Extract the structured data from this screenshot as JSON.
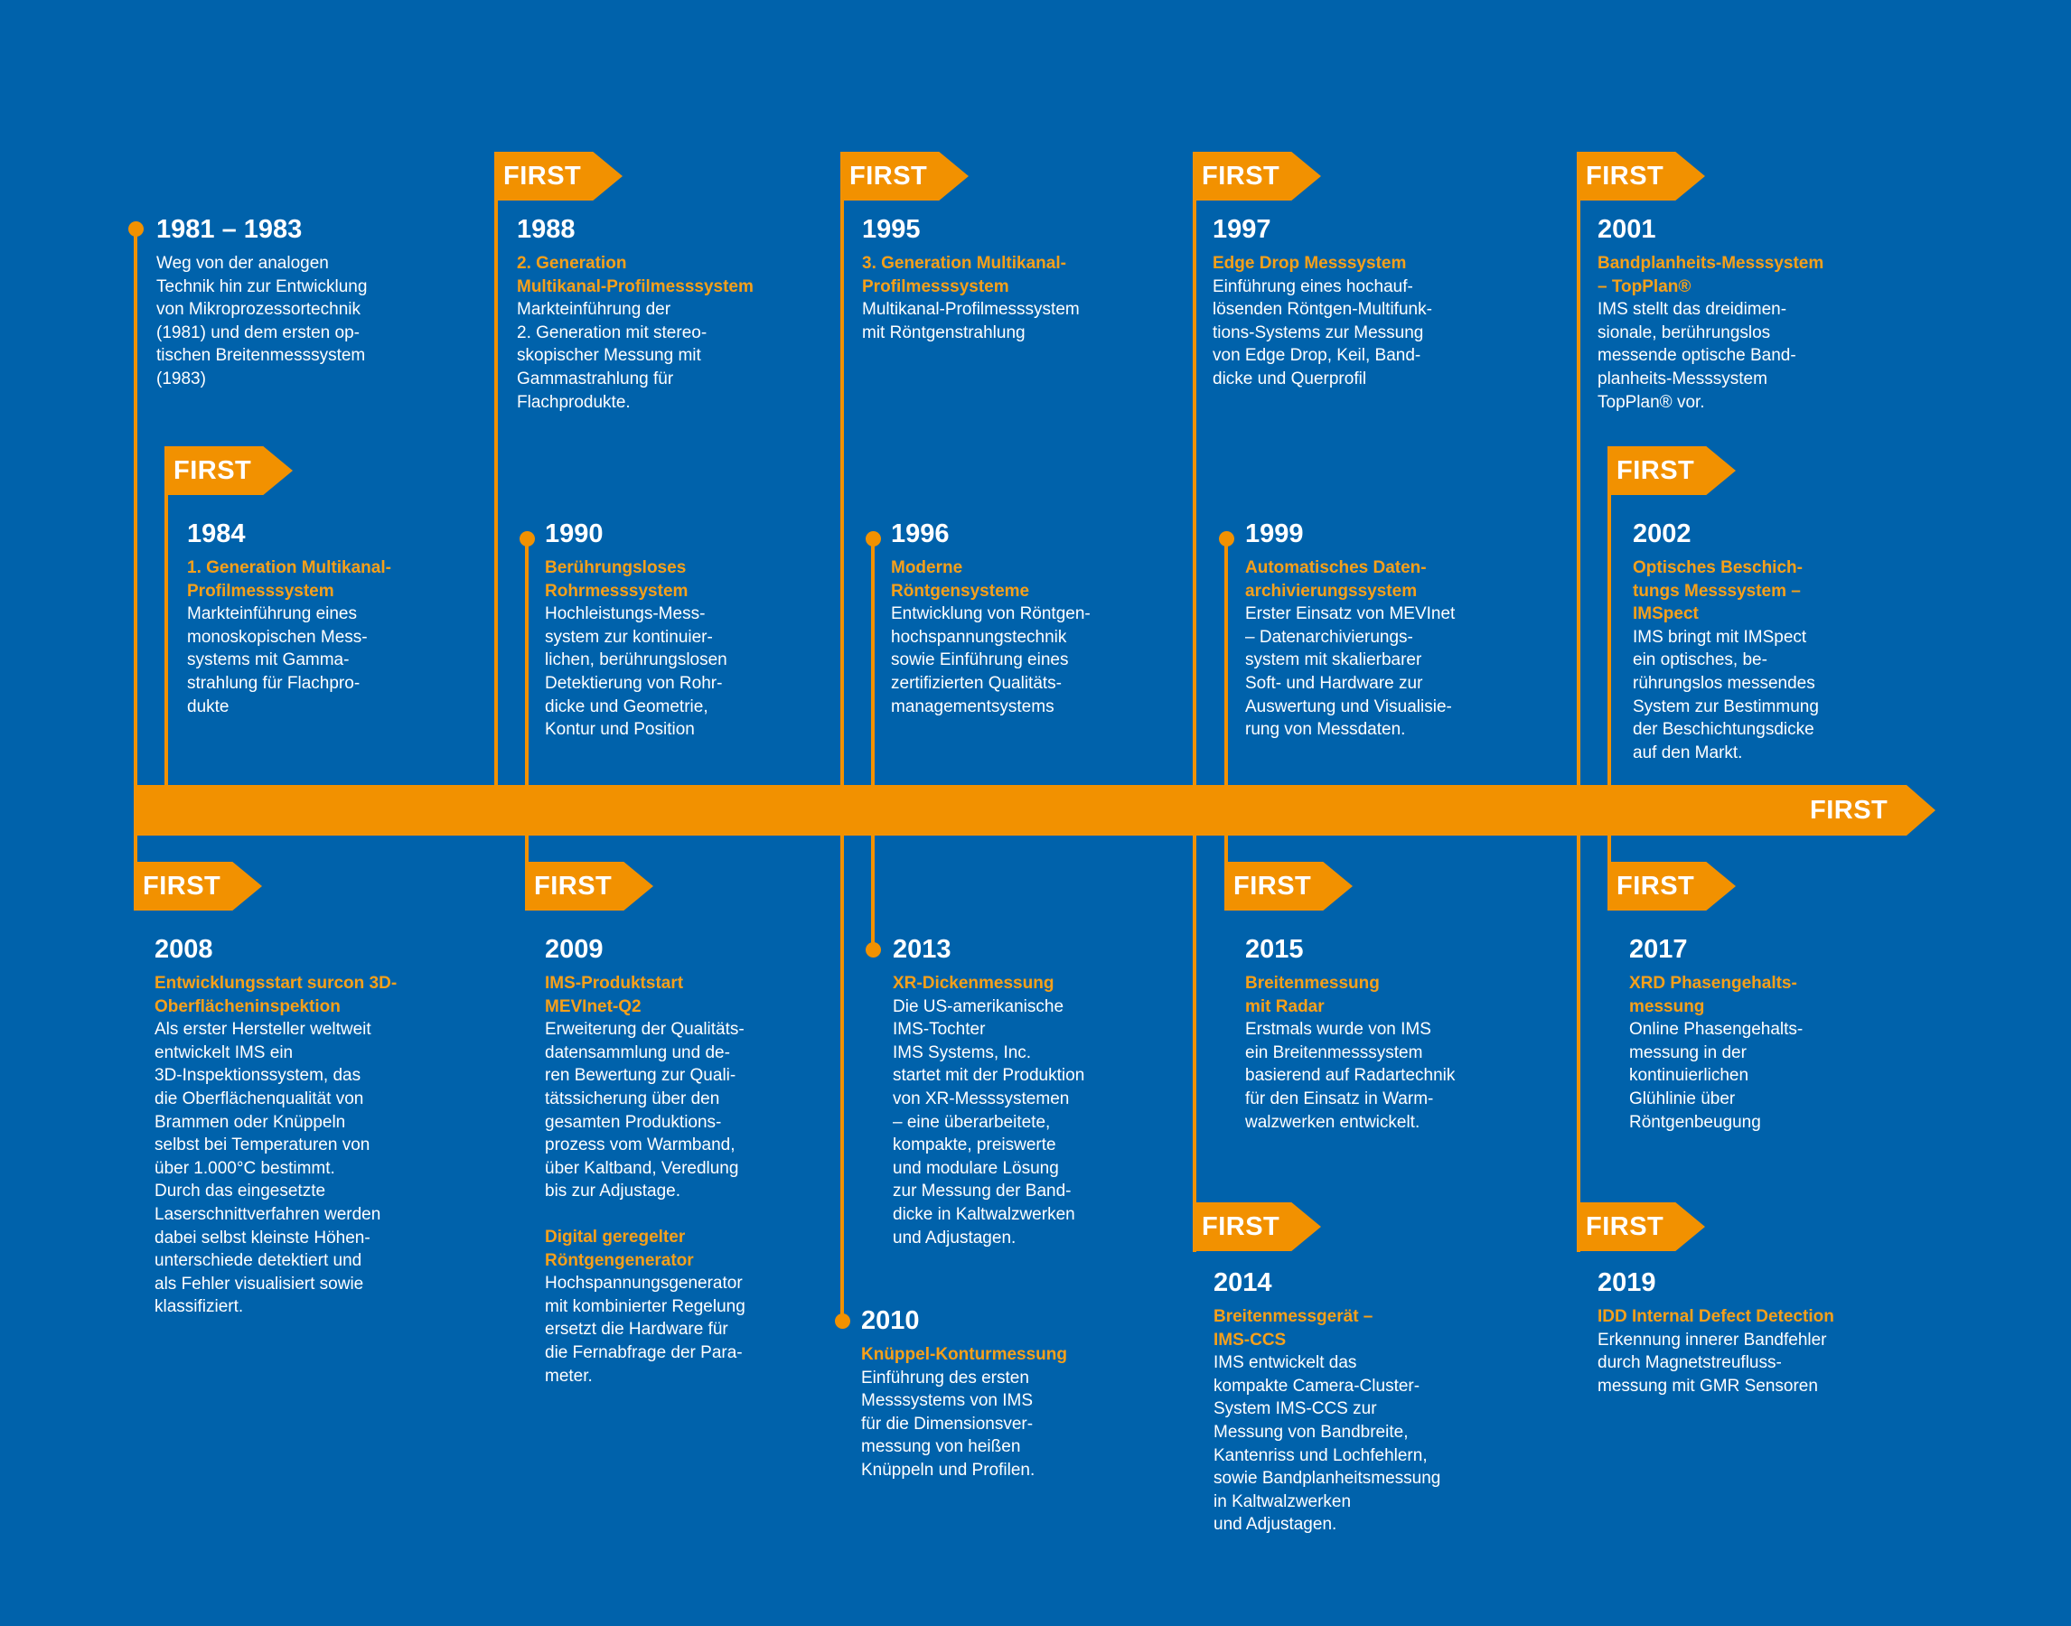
{
  "colors": {
    "background": "#0062ab",
    "accent": "#f29100",
    "title_text": "#f6a01a",
    "text": "#ffffff"
  },
  "flag_label": "FIRST",
  "main_arrow_label": "FIRST",
  "entries": {
    "e1981": {
      "year": "1981 – 1983",
      "body": "Weg von der analogen\nTechnik hin zur Entwicklung\nvon Mikroprozessortechnik\n(1981) und dem ersten op-\ntischen Breitenmesssystem\n(1983)"
    },
    "e1984": {
      "year": "1984",
      "title": "1. Generation Multikanal-\nProfilmesssystem",
      "body": "Markteinführung eines\nmonoskopischen Mess-\nsystems mit Gamma-\nstrahlung für Flachpro-\ndukte"
    },
    "e1988": {
      "year": "1988",
      "title": "2. Generation\nMultikanal-Profilmesssystem",
      "body": "Markteinführung der\n2. Generation mit stereo-\nskopischer Messung mit\nGammastrahlung für\nFlachprodukte."
    },
    "e1990": {
      "year": "1990",
      "title": "Berührungsloses\nRohrmesssystem",
      "body": "Hochleistungs-Mess-\nsystem zur kontinuier-\nlichen, berührungslosen\nDetektierung von Rohr-\ndicke und Geometrie,\nKontur und Position"
    },
    "e1995": {
      "year": "1995",
      "title": "3. Generation Multikanal-\nProfilmesssystem",
      "body": "Multikanal-Profilmesssystem\nmit Röntgenstrahlung"
    },
    "e1996": {
      "year": "1996",
      "title": "Moderne\nRöntgensysteme",
      "body": "Entwicklung von Röntgen-\nhochspannungstechnik\nsowie Einführung eines\nzertifizierten Qualitäts-\nmanagementsystems"
    },
    "e1997": {
      "year": "1997",
      "title": "Edge Drop Messsystem",
      "body": "Einführung eines hochauf-\nlösenden Röntgen-Multifunk-\ntions-Systems zur Messung\nvon Edge Drop, Keil, Band-\ndicke und Querprofil"
    },
    "e1999": {
      "year": "1999",
      "title": "Automatisches Daten-\narchivierungssystem",
      "body": "Erster Einsatz von MEVInet\n– Datenarchivierungs-\nsystem mit skalierbarer\nSoft- und Hardware zur\nAuswertung und Visualisie-\nrung von Messdaten."
    },
    "e2001": {
      "year": "2001",
      "title": "Bandplanheits-Messsystem\n– TopPlan®",
      "body": "IMS stellt das dreidimen-\nsionale, berührungslos\nmessende optische Band-\nplanheits-Messsystem\nTopPlan® vor."
    },
    "e2002": {
      "year": "2002",
      "title": "Optisches Beschich-\ntungs Messsystem –\nIMSpect",
      "body": "IMS bringt mit IMSpect\nein optisches, be-\nrührungslos messendes\nSystem zur Bestimmung\nder Beschichtungsdicke\nauf den Markt."
    },
    "e2008": {
      "year": "2008",
      "title": "Entwicklungsstart surcon 3D-\nOberflächeninspektion",
      "body": "Als erster Hersteller weltweit\nentwickelt IMS ein\n3D-Inspektionssystem, das\ndie Oberflächenqualität von\nBrammen oder Knüppeln\nselbst bei Temperaturen von\nüber 1.000°C bestimmt.\nDurch das eingesetzte\nLaserschnittverfahren werden\ndabei selbst kleinste Höhen-\nunterschiede detektiert und\nals Fehler visualisiert sowie\nklassifiziert."
    },
    "e2009": {
      "year": "2009",
      "title": "IMS-Produktstart\nMEVInet-Q2",
      "body": "Erweiterung der Qualitäts-\ndatensammlung und de-\nren Bewertung zur Quali-\ntätssicherung über den\ngesamten Produktions-\nprozess vom Warmband,\nüber Kaltband, Veredlung\nbis zur Adjustage.",
      "title2": "Digital geregelter\nRöntgengenerator",
      "body2": "Hochspannungsgenerator\nmit kombinierter Regelung\nersetzt die Hardware für\ndie Fernabfrage der Para-\nmeter."
    },
    "e2010": {
      "year": "2010",
      "title": "Knüppel-Konturmessung",
      "body": "Einführung des ersten\nMesssystems von IMS\nfür die Dimensionsver-\nmessung von heißen\nKnüppeln und Profilen."
    },
    "e2013": {
      "year": "2013",
      "title": "XR-Dickenmessung",
      "body": "Die US-amerikanische\nIMS-Tochter\nIMS Systems, Inc.\nstartet mit der Produktion\nvon XR-Messsystemen\n– eine überarbeitete,\nkompakte, preiswerte\nund modulare Lösung\nzur Messung der Band-\ndicke in Kaltwalzwerken\nund Adjustagen."
    },
    "e2014": {
      "year": "2014",
      "title": "Breitenmessgerät –\nIMS-CCS",
      "body": "IMS entwickelt das\nkompakte Camera-Cluster-\nSystem IMS-CCS zur\nMessung von Bandbreite,\nKantenriss und Lochfehlern,\nsowie Bandplanheitsmessung\nin Kaltwalzwerken\nund Adjustagen."
    },
    "e2015": {
      "year": "2015",
      "title": "Breitenmessung\nmit Radar",
      "body": "Erstmals wurde von IMS\nein Breitenmesssystem\nbasierend auf Radartechnik\nfür den Einsatz in Warm-\nwalzwerken entwickelt."
    },
    "e2017": {
      "year": "2017",
      "title": "XRD Phasengehalts-\nmessung",
      "body": "Online Phasengehalts-\nmessung in der\nkontinuierlichen\nGlühlinie über\nRöntgenbeugung"
    },
    "e2019": {
      "year": "2019",
      "title": "IDD Internal Defect Detection",
      "body": "Erkennung innerer Bandfehler\ndurch Magnetstreufluss-\nmessung mit GMR Sensoren"
    }
  }
}
